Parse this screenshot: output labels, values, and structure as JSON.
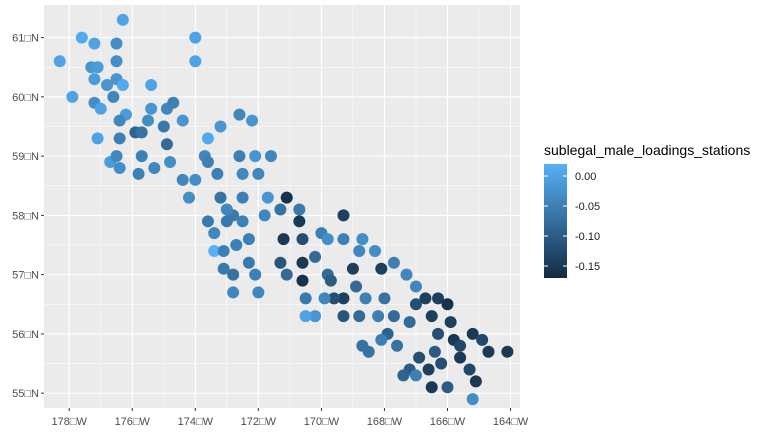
{
  "chart_data": {
    "type": "scatter",
    "title": "",
    "xlabel": "",
    "ylabel": "",
    "xlim": [
      -178.8,
      -163.7
    ],
    "ylim": [
      54.75,
      61.55
    ],
    "grid": true,
    "legend_position": "right",
    "x_ticks": [
      {
        "value": -178,
        "label": "178□W"
      },
      {
        "value": -176,
        "label": "176□W"
      },
      {
        "value": -174,
        "label": "174□W"
      },
      {
        "value": -172,
        "label": "172□W"
      },
      {
        "value": -170,
        "label": "170□W"
      },
      {
        "value": -168,
        "label": "168□W"
      },
      {
        "value": -166,
        "label": "166□W"
      },
      {
        "value": -164,
        "label": "164□W"
      }
    ],
    "y_ticks": [
      {
        "value": 55,
        "label": "55□N"
      },
      {
        "value": 56,
        "label": "56□N"
      },
      {
        "value": 57,
        "label": "57□N"
      },
      {
        "value": 58,
        "label": "58□N"
      },
      {
        "value": 59,
        "label": "59□N"
      },
      {
        "value": 60,
        "label": "60□N"
      },
      {
        "value": 61,
        "label": "61□N"
      }
    ],
    "legend": {
      "title": "sublegal_male_loadings_stations",
      "min": -0.17,
      "max": 0.02,
      "ticks": [
        {
          "value": 0.0,
          "label": "0.00"
        },
        {
          "value": -0.05,
          "label": "-0.05"
        },
        {
          "value": -0.1,
          "label": "-0.10"
        },
        {
          "value": -0.15,
          "label": "-0.15"
        }
      ],
      "color_low": "#132B43",
      "color_high": "#56B1F7"
    },
    "points": [
      [
        -178.3,
        60.6,
        0.0
      ],
      [
        -177.9,
        60.0,
        0.0
      ],
      [
        -177.6,
        61.0,
        0.01
      ],
      [
        -177.3,
        60.5,
        -0.02
      ],
      [
        -177.2,
        60.9,
        0.0
      ],
      [
        -177.1,
        60.5,
        -0.01
      ],
      [
        -177.2,
        60.3,
        -0.01
      ],
      [
        -177.2,
        59.9,
        -0.03
      ],
      [
        -177.1,
        59.3,
        0.0
      ],
      [
        -177.0,
        59.8,
        0.0
      ],
      [
        -176.7,
        58.9,
        -0.01
      ],
      [
        -176.5,
        59.0,
        -0.04
      ],
      [
        -176.8,
        60.2,
        -0.02
      ],
      [
        -176.6,
        60.0,
        -0.04
      ],
      [
        -176.5,
        60.3,
        -0.02
      ],
      [
        -176.5,
        60.6,
        -0.03
      ],
      [
        -176.5,
        60.9,
        -0.03
      ],
      [
        -176.3,
        61.3,
        0.0
      ],
      [
        -176.3,
        60.2,
        0.01
      ],
      [
        -176.2,
        59.7,
        -0.01
      ],
      [
        -176.4,
        58.8,
        -0.03
      ],
      [
        -176.4,
        59.3,
        -0.05
      ],
      [
        -176.4,
        59.6,
        -0.04
      ],
      [
        -175.9,
        59.4,
        -0.09
      ],
      [
        -175.7,
        59.4,
        -0.07
      ],
      [
        -175.7,
        59.0,
        -0.05
      ],
      [
        -175.8,
        58.7,
        -0.05
      ],
      [
        -175.5,
        59.6,
        -0.03
      ],
      [
        -175.4,
        59.8,
        -0.02
      ],
      [
        -175.4,
        60.2,
        0.0
      ],
      [
        -175.3,
        58.8,
        -0.04
      ],
      [
        -175.0,
        59.5,
        -0.06
      ],
      [
        -174.9,
        59.8,
        -0.04
      ],
      [
        -174.7,
        59.9,
        -0.05
      ],
      [
        -174.9,
        59.2,
        -0.08
      ],
      [
        -174.8,
        58.9,
        -0.03
      ],
      [
        -174.4,
        59.6,
        -0.02
      ],
      [
        -174.4,
        58.6,
        -0.04
      ],
      [
        -174.2,
        58.3,
        -0.03
      ],
      [
        -174.0,
        58.6,
        -0.03
      ],
      [
        -174.0,
        60.6,
        0.0
      ],
      [
        -174.0,
        61.0,
        0.0
      ],
      [
        -173.7,
        59.0,
        -0.04
      ],
      [
        -173.6,
        59.3,
        0.01
      ],
      [
        -173.3,
        58.7,
        -0.05
      ],
      [
        -173.2,
        59.5,
        -0.02
      ],
      [
        -172.6,
        59.7,
        -0.04
      ],
      [
        -172.2,
        59.6,
        -0.02
      ],
      [
        -172.6,
        59.0,
        -0.05
      ],
      [
        -172.1,
        59.0,
        -0.02
      ],
      [
        -171.6,
        59.0,
        -0.04
      ],
      [
        -172.5,
        58.7,
        -0.04
      ],
      [
        -172.0,
        58.7,
        -0.04
      ],
      [
        -173.6,
        58.9,
        -0.05
      ],
      [
        -173.2,
        58.3,
        -0.07
      ],
      [
        -172.8,
        58.0,
        -0.06
      ],
      [
        -172.5,
        58.3,
        -0.05
      ],
      [
        -173.0,
        58.1,
        -0.04
      ],
      [
        -173.6,
        57.9,
        -0.06
      ],
      [
        -173.0,
        57.9,
        -0.06
      ],
      [
        -172.5,
        57.9,
        -0.05
      ],
      [
        -173.4,
        57.7,
        -0.04
      ],
      [
        -173.4,
        57.4,
        0.02
      ],
      [
        -173.1,
        57.4,
        -0.05
      ],
      [
        -172.7,
        57.5,
        -0.05
      ],
      [
        -173.1,
        57.1,
        -0.06
      ],
      [
        -172.8,
        57.0,
        -0.07
      ],
      [
        -172.8,
        56.7,
        -0.04
      ],
      [
        -172.3,
        57.6,
        -0.05
      ],
      [
        -172.3,
        57.2,
        -0.06
      ],
      [
        -172.1,
        57.0,
        -0.05
      ],
      [
        -172.0,
        56.7,
        -0.04
      ],
      [
        -171.8,
        58.0,
        -0.04
      ],
      [
        -171.7,
        58.3,
        -0.02
      ],
      [
        -171.3,
        58.1,
        -0.07
      ],
      [
        -171.1,
        58.3,
        -0.16
      ],
      [
        -171.2,
        57.6,
        -0.15
      ],
      [
        -171.3,
        57.2,
        -0.11
      ],
      [
        -171.1,
        57.0,
        -0.08
      ],
      [
        -170.7,
        58.1,
        -0.06
      ],
      [
        -170.7,
        57.9,
        -0.15
      ],
      [
        -170.6,
        57.6,
        -0.12
      ],
      [
        -170.6,
        57.2,
        -0.15
      ],
      [
        -170.6,
        56.9,
        -0.16
      ],
      [
        -170.5,
        56.6,
        -0.06
      ],
      [
        -170.2,
        57.3,
        -0.08
      ],
      [
        -170.0,
        57.7,
        -0.05
      ],
      [
        -169.8,
        57.6,
        -0.03
      ],
      [
        -169.8,
        57.0,
        -0.08
      ],
      [
        -169.7,
        56.9,
        -0.1
      ],
      [
        -169.3,
        58.0,
        -0.14
      ],
      [
        -169.3,
        57.6,
        -0.05
      ],
      [
        -169.3,
        56.6,
        -0.14
      ],
      [
        -169.0,
        57.1,
        -0.14
      ],
      [
        -168.9,
        56.8,
        -0.08
      ],
      [
        -168.8,
        57.4,
        -0.04
      ],
      [
        -168.7,
        57.6,
        -0.03
      ],
      [
        -168.3,
        57.4,
        -0.03
      ],
      [
        -168.1,
        57.1,
        -0.14
      ],
      [
        -167.7,
        57.2,
        -0.05
      ],
      [
        -167.3,
        57.0,
        -0.04
      ],
      [
        -167.0,
        56.8,
        -0.04
      ],
      [
        -168.0,
        56.6,
        -0.07
      ],
      [
        -167.7,
        56.3,
        -0.08
      ],
      [
        -167.2,
        56.2,
        -0.08
      ],
      [
        -167.0,
        56.5,
        -0.12
      ],
      [
        -166.7,
        56.6,
        -0.14
      ],
      [
        -166.3,
        56.6,
        -0.14
      ],
      [
        -166.0,
        56.5,
        -0.16
      ],
      [
        -165.9,
        56.2,
        -0.14
      ],
      [
        -165.8,
        55.9,
        -0.15
      ],
      [
        -165.6,
        55.8,
        -0.13
      ],
      [
        -165.2,
        56.0,
        -0.15
      ],
      [
        -164.9,
        55.9,
        -0.13
      ],
      [
        -164.7,
        55.7,
        -0.15
      ],
      [
        -164.1,
        55.7,
        -0.15
      ],
      [
        -166.5,
        56.3,
        -0.14
      ],
      [
        -166.3,
        56.0,
        -0.12
      ],
      [
        -166.4,
        55.7,
        -0.1
      ],
      [
        -166.9,
        55.6,
        -0.12
      ],
      [
        -167.2,
        55.4,
        -0.1
      ],
      [
        -167.4,
        55.3,
        -0.09
      ],
      [
        -166.6,
        55.4,
        -0.14
      ],
      [
        -166.2,
        55.5,
        -0.12
      ],
      [
        -166.5,
        55.1,
        -0.15
      ],
      [
        -166.0,
        55.1,
        -0.1
      ],
      [
        -165.3,
        55.4,
        -0.13
      ],
      [
        -165.1,
        55.2,
        -0.15
      ],
      [
        -165.2,
        54.9,
        -0.03
      ],
      [
        -165.6,
        55.6,
        -0.15
      ],
      [
        -167.9,
        56.0,
        -0.09
      ],
      [
        -168.2,
        56.3,
        -0.05
      ],
      [
        -168.6,
        56.6,
        -0.05
      ],
      [
        -168.8,
        56.3,
        -0.08
      ],
      [
        -169.3,
        56.3,
        -0.11
      ],
      [
        -169.6,
        56.6,
        -0.12
      ],
      [
        -170.2,
        56.3,
        -0.02
      ],
      [
        -170.5,
        56.3,
        0.0
      ],
      [
        -169.9,
        56.6,
        -0.04
      ],
      [
        -168.7,
        55.8,
        -0.07
      ],
      [
        -168.5,
        55.7,
        -0.07
      ],
      [
        -168.1,
        55.9,
        -0.05
      ],
      [
        -167.6,
        55.8,
        -0.07
      ],
      [
        -167.0,
        55.3,
        -0.05
      ]
    ]
  }
}
